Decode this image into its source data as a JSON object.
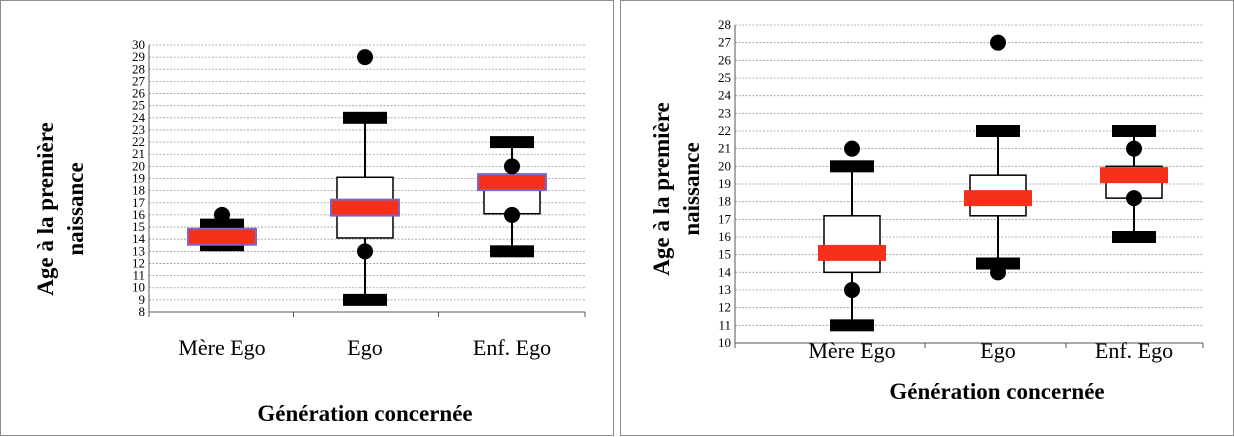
{
  "chart_data": [
    {
      "type": "box",
      "ylabel_lines": [
        "Age à la première",
        "naissance"
      ],
      "xlabel": "Génération concernée",
      "categories": [
        "Mère Ego",
        "Ego",
        "Enf. Ego"
      ],
      "ylim": [
        8,
        30
      ],
      "yticks": [
        8,
        9,
        10,
        11,
        12,
        13,
        14,
        15,
        16,
        17,
        18,
        19,
        20,
        21,
        22,
        23,
        24,
        25,
        26,
        27,
        28,
        29,
        30
      ],
      "grid": true,
      "boxes": [
        {
          "whisker_low": 13.5,
          "whisker_high": 15.2,
          "q1": 13.8,
          "q3": 14.5,
          "median": 14.2,
          "outliers": [
            16
          ]
        },
        {
          "whisker_low": 9,
          "whisker_high": 24,
          "q1": 14.1,
          "q3": 19.1,
          "median": 16.6,
          "outliers": [
            29,
            13
          ]
        },
        {
          "whisker_low": 13,
          "whisker_high": 22,
          "q1": 16.1,
          "q3": 18.8,
          "median": 18.7,
          "outliers": [
            20,
            16
          ]
        }
      ]
    },
    {
      "type": "box",
      "ylabel_lines": [
        "Age à la première",
        "naissance"
      ],
      "xlabel": "Génération concernée",
      "categories": [
        "Mère Ego",
        "Ego",
        "Enf. Ego"
      ],
      "ylim": [
        10,
        28
      ],
      "yticks": [
        10,
        11,
        12,
        13,
        14,
        15,
        16,
        17,
        18,
        19,
        20,
        21,
        22,
        23,
        24,
        25,
        26,
        27,
        28
      ],
      "grid": true,
      "boxes": [
        {
          "whisker_low": 11,
          "whisker_high": 20,
          "q1": 14,
          "q3": 17.2,
          "median": 15.1,
          "outliers": [
            21,
            13
          ]
        },
        {
          "whisker_low": 14.5,
          "whisker_high": 22,
          "q1": 17.2,
          "q3": 19.5,
          "median": 18.2,
          "outliers": [
            27,
            14
          ]
        },
        {
          "whisker_low": 16,
          "whisker_high": 22,
          "q1": 18.2,
          "q3": 20,
          "median": 19.5,
          "outliers": [
            21,
            18.2
          ]
        }
      ]
    }
  ],
  "colors": {
    "median": "#f7301c",
    "median_left_outline": "#7b67c6",
    "whisker_cap": "#000000",
    "grid": "#9a9a9a",
    "panel_border": "#8c8c8c"
  }
}
